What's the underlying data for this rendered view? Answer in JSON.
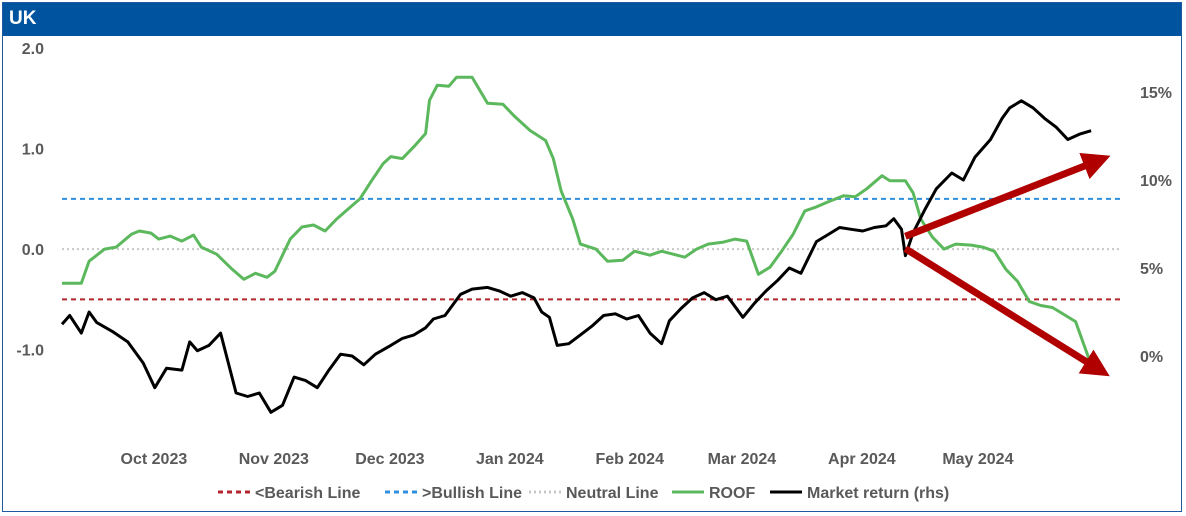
{
  "header": {
    "title": "UK"
  },
  "colors": {
    "bearish": "#b3262e",
    "bullish": "#2f8fdd",
    "neutral": "#c8c8c8",
    "roof": "#5cb85c",
    "market": "#000000",
    "arrow": "#b00000",
    "title_bg": "#00549f"
  },
  "chart_data": {
    "type": "line",
    "title": "UK",
    "x_tick_labels": [
      "Oct 2023",
      "Nov 2023",
      "Dec 2023",
      "Jan 2024",
      "Feb 2024",
      "Mar 2024",
      "Apr 2024",
      "May 2024"
    ],
    "x_tick_dates": [
      "2023-10-01",
      "2023-11-01",
      "2023-12-01",
      "2024-01-01",
      "2024-02-01",
      "2024-03-01",
      "2024-04-01",
      "2024-05-01"
    ],
    "x_range": [
      "2023-09-15",
      "2024-06-15"
    ],
    "y_left": {
      "range": [
        -1.5,
        2.0
      ],
      "ticks": [
        2.0,
        1.0,
        0.0,
        -1.0
      ],
      "tick_labels": [
        "2.0",
        "1.0",
        "0.0",
        "-1.0"
      ]
    },
    "y_right": {
      "label": "Market return (rhs)",
      "ticks": [
        15,
        10,
        5,
        0
      ],
      "tick_labels": [
        "15%",
        "10%",
        "5%",
        "0%"
      ],
      "range": [
        -2.5,
        17.5
      ]
    },
    "grid": false,
    "legend_position": "bottom",
    "reference_lines": [
      {
        "name": "<Bearish Line",
        "value": -0.5,
        "style": "dashed"
      },
      {
        "name": ">Bullish Line",
        "value": 0.5,
        "style": "dashed"
      },
      {
        "name": "Neutral Line",
        "value": 0.0,
        "style": "dotted"
      }
    ],
    "series": [
      {
        "name": "ROOF",
        "axis": "left",
        "points": [
          [
            "2023-09-15",
            -0.34
          ],
          [
            "2023-09-20",
            -0.34
          ],
          [
            "2023-09-22",
            -0.12
          ],
          [
            "2023-09-26",
            0.0
          ],
          [
            "2023-09-29",
            0.02
          ],
          [
            "2023-10-03",
            0.15
          ],
          [
            "2023-10-05",
            0.18
          ],
          [
            "2023-10-08",
            0.16
          ],
          [
            "2023-10-10",
            0.1
          ],
          [
            "2023-10-13",
            0.13
          ],
          [
            "2023-10-16",
            0.08
          ],
          [
            "2023-10-19",
            0.14
          ],
          [
            "2023-10-21",
            0.02
          ],
          [
            "2023-10-25",
            -0.05
          ],
          [
            "2023-10-29",
            -0.2
          ],
          [
            "2023-11-01",
            -0.3
          ],
          [
            "2023-11-04",
            -0.24
          ],
          [
            "2023-11-07",
            -0.28
          ],
          [
            "2023-11-09",
            -0.22
          ],
          [
            "2023-11-13",
            0.1
          ],
          [
            "2023-11-16",
            0.22
          ],
          [
            "2023-11-19",
            0.24
          ],
          [
            "2023-11-22",
            0.18
          ],
          [
            "2023-11-25",
            0.3
          ],
          [
            "2023-11-28",
            0.4
          ],
          [
            "2023-12-01",
            0.5
          ],
          [
            "2023-12-04",
            0.68
          ],
          [
            "2023-12-07",
            0.85
          ],
          [
            "2023-12-09",
            0.92
          ],
          [
            "2023-12-12",
            0.9
          ],
          [
            "2023-12-15",
            1.02
          ],
          [
            "2023-12-18",
            1.15
          ],
          [
            "2023-12-19",
            1.48
          ],
          [
            "2023-12-21",
            1.63
          ],
          [
            "2023-12-24",
            1.62
          ],
          [
            "2023-12-26",
            1.71
          ],
          [
            "2023-12-30",
            1.71
          ],
          [
            "2024-01-03",
            1.45
          ],
          [
            "2024-01-07",
            1.44
          ],
          [
            "2024-01-10",
            1.32
          ],
          [
            "2024-01-14",
            1.18
          ],
          [
            "2024-01-18",
            1.08
          ],
          [
            "2024-01-20",
            0.9
          ],
          [
            "2024-01-22",
            0.58
          ],
          [
            "2024-01-25",
            0.3
          ],
          [
            "2024-01-27",
            0.05
          ],
          [
            "2024-01-31",
            0.0
          ],
          [
            "2024-02-03",
            -0.12
          ],
          [
            "2024-02-07",
            -0.11
          ],
          [
            "2024-02-10",
            -0.02
          ],
          [
            "2024-02-14",
            -0.06
          ],
          [
            "2024-02-17",
            -0.02
          ],
          [
            "2024-02-20",
            -0.05
          ],
          [
            "2024-02-23",
            -0.08
          ],
          [
            "2024-02-26",
            0.0
          ],
          [
            "2024-02-29",
            0.05
          ],
          [
            "2024-03-04",
            0.07
          ],
          [
            "2024-03-07",
            0.1
          ],
          [
            "2024-03-10",
            0.08
          ],
          [
            "2024-03-13",
            -0.25
          ],
          [
            "2024-03-16",
            -0.18
          ],
          [
            "2024-03-19",
            -0.02
          ],
          [
            "2024-03-22",
            0.15
          ],
          [
            "2024-03-25",
            0.38
          ],
          [
            "2024-03-28",
            0.42
          ],
          [
            "2024-03-31",
            0.47
          ],
          [
            "2024-04-04",
            0.53
          ],
          [
            "2024-04-07",
            0.52
          ],
          [
            "2024-04-10",
            0.6
          ],
          [
            "2024-04-14",
            0.73
          ],
          [
            "2024-04-16",
            0.68
          ],
          [
            "2024-04-20",
            0.68
          ],
          [
            "2024-04-22",
            0.56
          ],
          [
            "2024-04-24",
            0.3
          ],
          [
            "2024-04-27",
            0.12
          ],
          [
            "2024-04-30",
            0.0
          ],
          [
            "2024-05-03",
            0.05
          ],
          [
            "2024-05-07",
            0.04
          ],
          [
            "2024-05-10",
            0.02
          ],
          [
            "2024-05-13",
            -0.02
          ],
          [
            "2024-05-16",
            -0.2
          ],
          [
            "2024-05-19",
            -0.32
          ],
          [
            "2024-05-22",
            -0.52
          ],
          [
            "2024-05-25",
            -0.56
          ],
          [
            "2024-05-28",
            -0.58
          ],
          [
            "2024-05-31",
            -0.65
          ],
          [
            "2024-06-03",
            -0.72
          ],
          [
            "2024-06-07",
            -1.15
          ]
        ]
      },
      {
        "name": "Market return (rhs)",
        "axis": "right",
        "points": [
          [
            "2023-09-15",
            1.8
          ],
          [
            "2023-09-17",
            2.3
          ],
          [
            "2023-09-20",
            1.3
          ],
          [
            "2023-09-22",
            2.5
          ],
          [
            "2023-09-24",
            1.9
          ],
          [
            "2023-09-28",
            1.4
          ],
          [
            "2023-10-02",
            0.8
          ],
          [
            "2023-10-06",
            -0.4
          ],
          [
            "2023-10-09",
            -1.8
          ],
          [
            "2023-10-12",
            -0.7
          ],
          [
            "2023-10-16",
            -0.8
          ],
          [
            "2023-10-18",
            0.8
          ],
          [
            "2023-10-20",
            0.3
          ],
          [
            "2023-10-23",
            0.6
          ],
          [
            "2023-10-26",
            1.3
          ],
          [
            "2023-10-30",
            -2.1
          ],
          [
            "2023-11-02",
            -2.3
          ],
          [
            "2023-11-05",
            -2.1
          ],
          [
            "2023-11-08",
            -3.2
          ],
          [
            "2023-11-11",
            -2.8
          ],
          [
            "2023-11-14",
            -1.2
          ],
          [
            "2023-11-17",
            -1.4
          ],
          [
            "2023-11-20",
            -1.8
          ],
          [
            "2023-11-23",
            -0.8
          ],
          [
            "2023-11-26",
            0.1
          ],
          [
            "2023-11-29",
            0.0
          ],
          [
            "2023-12-02",
            -0.5
          ],
          [
            "2023-12-05",
            0.1
          ],
          [
            "2023-12-09",
            0.6
          ],
          [
            "2023-12-12",
            1.0
          ],
          [
            "2023-12-15",
            1.2
          ],
          [
            "2023-12-18",
            1.6
          ],
          [
            "2023-12-20",
            2.1
          ],
          [
            "2023-12-23",
            2.3
          ],
          [
            "2023-12-27",
            3.5
          ],
          [
            "2023-12-30",
            3.8
          ],
          [
            "2024-01-03",
            3.9
          ],
          [
            "2024-01-06",
            3.7
          ],
          [
            "2024-01-09",
            3.4
          ],
          [
            "2024-01-12",
            3.6
          ],
          [
            "2024-01-15",
            3.3
          ],
          [
            "2024-01-17",
            2.5
          ],
          [
            "2024-01-19",
            2.2
          ],
          [
            "2024-01-21",
            0.6
          ],
          [
            "2024-01-24",
            0.7
          ],
          [
            "2024-01-27",
            1.2
          ],
          [
            "2024-01-30",
            1.7
          ],
          [
            "2024-02-02",
            2.3
          ],
          [
            "2024-02-05",
            2.4
          ],
          [
            "2024-02-08",
            2.1
          ],
          [
            "2024-02-11",
            2.3
          ],
          [
            "2024-02-14",
            1.3
          ],
          [
            "2024-02-17",
            0.7
          ],
          [
            "2024-02-19",
            2.0
          ],
          [
            "2024-02-22",
            2.7
          ],
          [
            "2024-02-25",
            3.3
          ],
          [
            "2024-02-28",
            3.6
          ],
          [
            "2024-03-02",
            3.2
          ],
          [
            "2024-03-05",
            3.4
          ],
          [
            "2024-03-09",
            2.2
          ],
          [
            "2024-03-12",
            3.0
          ],
          [
            "2024-03-15",
            3.7
          ],
          [
            "2024-03-18",
            4.3
          ],
          [
            "2024-03-21",
            5.0
          ],
          [
            "2024-03-24",
            4.7
          ],
          [
            "2024-03-28",
            6.5
          ],
          [
            "2024-03-31",
            6.9
          ],
          [
            "2024-04-03",
            7.3
          ],
          [
            "2024-04-06",
            7.2
          ],
          [
            "2024-04-09",
            7.1
          ],
          [
            "2024-04-12",
            7.3
          ],
          [
            "2024-04-15",
            7.4
          ],
          [
            "2024-04-17",
            7.8
          ],
          [
            "2024-04-19",
            7.2
          ],
          [
            "2024-04-20",
            5.7
          ],
          [
            "2024-04-22",
            7.0
          ],
          [
            "2024-04-25",
            8.3
          ],
          [
            "2024-04-28",
            9.5
          ],
          [
            "2024-05-02",
            10.4
          ],
          [
            "2024-05-05",
            10.0
          ],
          [
            "2024-05-08",
            11.3
          ],
          [
            "2024-05-12",
            12.3
          ],
          [
            "2024-05-15",
            13.5
          ],
          [
            "2024-05-17",
            14.1
          ],
          [
            "2024-05-20",
            14.5
          ],
          [
            "2024-05-23",
            14.1
          ],
          [
            "2024-05-26",
            13.5
          ],
          [
            "2024-05-29",
            13.0
          ],
          [
            "2024-06-01",
            12.3
          ],
          [
            "2024-06-04",
            12.6
          ],
          [
            "2024-06-07",
            12.8
          ]
        ]
      }
    ],
    "annotations": [
      {
        "type": "arrow",
        "from": [
          "2024-04-20",
          6.8
        ],
        "to": [
          "2024-06-10",
          11.2
        ],
        "axis": "right"
      },
      {
        "type": "arrow",
        "from": [
          "2024-04-20",
          6.1
        ],
        "to": [
          "2024-06-10",
          -0.9
        ],
        "axis": "right"
      }
    ],
    "legend": [
      "<Bearish Line",
      ">Bullish Line",
      "Neutral Line",
      "ROOF",
      "Market return (rhs)"
    ]
  }
}
